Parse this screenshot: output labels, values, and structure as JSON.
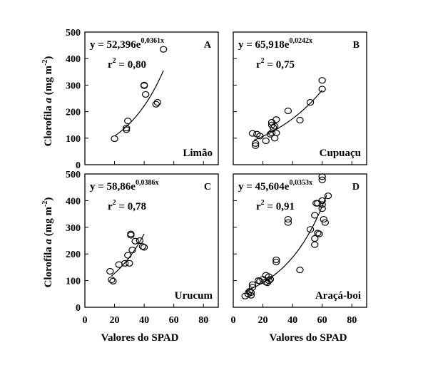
{
  "x_axis_label": "Valores do SPAD",
  "y_axis_label_prefix": "Clorofila ",
  "y_axis_label_var": "a",
  "y_axis_label_unit": " (mg m",
  "y_axis_label_exp": "-2",
  "y_axis_label_close": ")",
  "chart_data": [
    {
      "type": "scatter",
      "letter": "A",
      "name": "Limão",
      "eq_base": "y = 52,396e",
      "eq_exp": "0,0361x",
      "r2_label": "r",
      "r2_exp": "2",
      "r2_value": " = 0,80",
      "fit": {
        "a": 52.396,
        "b": 0.0361,
        "x_from": 20,
        "x_to": 53
      },
      "xlim": [
        0,
        90
      ],
      "ylim": [
        0,
        500
      ],
      "xticks": [],
      "yticks": [
        "0",
        "100",
        "200",
        "300",
        "400",
        "500"
      ],
      "points": [
        [
          20,
          98
        ],
        [
          28,
          132
        ],
        [
          28,
          138
        ],
        [
          29,
          165
        ],
        [
          40,
          298
        ],
        [
          40,
          300
        ],
        [
          41,
          265
        ],
        [
          48,
          228
        ],
        [
          49,
          235
        ],
        [
          53,
          435
        ]
      ]
    },
    {
      "type": "scatter",
      "letter": "B",
      "name": "Cupuaçu",
      "eq_base": "y = 65,918e",
      "eq_exp": "0,0242x",
      "r2_label": "r",
      "r2_exp": "2",
      "r2_value": " = 0,75",
      "fit": {
        "a": 65.918,
        "b": 0.0242,
        "x_from": 14,
        "x_to": 60
      },
      "xlim": [
        0,
        90
      ],
      "ylim": [
        0,
        500
      ],
      "xticks": [],
      "yticks": [],
      "points": [
        [
          13,
          118
        ],
        [
          15,
          72
        ],
        [
          15,
          80
        ],
        [
          16,
          115
        ],
        [
          18,
          108
        ],
        [
          22,
          90
        ],
        [
          25,
          115
        ],
        [
          26,
          120
        ],
        [
          26,
          150
        ],
        [
          26,
          160
        ],
        [
          27,
          140
        ],
        [
          28,
          145
        ],
        [
          28,
          100
        ],
        [
          29,
          120
        ],
        [
          29,
          170
        ],
        [
          37,
          203
        ],
        [
          45,
          168
        ],
        [
          52,
          235
        ],
        [
          60,
          285
        ],
        [
          60,
          318
        ]
      ]
    },
    {
      "type": "scatter",
      "letter": "C",
      "name": "Urucum",
      "eq_base": "y = 58,86e",
      "eq_exp": "0,0386x",
      "r2_label": "r",
      "r2_exp": "2",
      "r2_value": " = 0,78",
      "fit": {
        "a": 58.86,
        "b": 0.0386,
        "x_from": 18,
        "x_to": 40
      },
      "xlim": [
        0,
        90
      ],
      "ylim": [
        0,
        500
      ],
      "xticks": [
        "0",
        "20",
        "40",
        "60",
        "80"
      ],
      "yticks": [
        "0",
        "100",
        "200",
        "300",
        "400",
        "500"
      ],
      "points": [
        [
          17,
          135
        ],
        [
          18,
          103
        ],
        [
          19,
          98
        ],
        [
          23,
          160
        ],
        [
          27,
          165
        ],
        [
          29,
          195
        ],
        [
          30,
          165
        ],
        [
          31,
          270
        ],
        [
          31,
          275
        ],
        [
          32,
          215
        ],
        [
          34,
          248
        ],
        [
          37,
          250
        ],
        [
          39,
          228
        ],
        [
          40,
          225
        ]
      ]
    },
    {
      "type": "scatter",
      "letter": "D",
      "name": "Araçá-boi",
      "eq_base": "y = 45,604e",
      "eq_exp": "0,0353x",
      "r2_label": "r",
      "r2_exp": "2",
      "r2_value": " = 0,91",
      "fit": {
        "a": 45.604,
        "b": 0.0353,
        "x_from": 8,
        "x_to": 63
      },
      "xlim": [
        0,
        90
      ],
      "ylim": [
        0,
        500
      ],
      "xticks": [
        "0",
        "20",
        "40",
        "60",
        "80"
      ],
      "yticks": [],
      "points": [
        [
          8,
          42
        ],
        [
          10,
          50
        ],
        [
          11,
          60
        ],
        [
          12,
          45
        ],
        [
          12,
          55
        ],
        [
          13,
          85
        ],
        [
          13,
          75
        ],
        [
          17,
          100
        ],
        [
          18,
          98
        ],
        [
          20,
          105
        ],
        [
          22,
          120
        ],
        [
          22,
          95
        ],
        [
          23,
          92
        ],
        [
          24,
          115
        ],
        [
          24,
          100
        ],
        [
          25,
          105
        ],
        [
          29,
          178
        ],
        [
          29,
          170
        ],
        [
          37,
          330
        ],
        [
          37,
          318
        ],
        [
          45,
          140
        ],
        [
          52,
          292
        ],
        [
          55,
          258
        ],
        [
          55,
          235
        ],
        [
          55,
          345
        ],
        [
          56,
          390
        ],
        [
          57,
          390
        ],
        [
          57,
          278
        ],
        [
          58,
          275
        ],
        [
          60,
          490
        ],
        [
          60,
          478
        ],
        [
          60,
          400
        ],
        [
          60,
          385
        ],
        [
          60,
          370
        ],
        [
          61,
          330
        ],
        [
          62,
          318
        ],
        [
          64,
          418
        ]
      ]
    }
  ]
}
